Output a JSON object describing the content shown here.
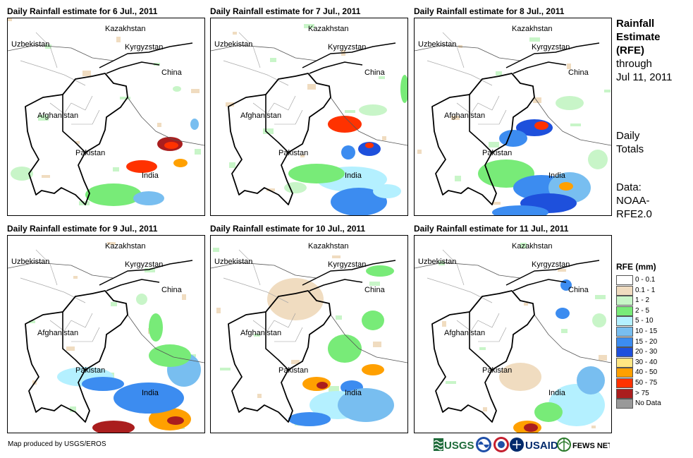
{
  "panels": [
    {
      "title": "Daily Rainfall estimate for 6 Jul., 2011"
    },
    {
      "title": "Daily Rainfall estimate for 7 Jul., 2011"
    },
    {
      "title": "Daily Rainfall estimate for 8 Jul., 2011"
    },
    {
      "title": "Daily Rainfall estimate for 9 Jul., 2011"
    },
    {
      "title": "Daily Rainfall estimate for 10 Jul., 2011"
    },
    {
      "title": "Daily Rainfall estimate for 11 Jul., 2011"
    }
  ],
  "map_labels": {
    "kazakhstan": "Kazakhstan",
    "uzbekistan": "Uzbekistan",
    "kyrgyzstan": "Kyrgyzstan",
    "china": "China",
    "afghanistan": "Afghanistan",
    "pakistan": "Pakistan",
    "india": "India"
  },
  "sidebar": {
    "title_lines": [
      "Rainfall",
      "Estimate",
      "(RFE)"
    ],
    "through": "through",
    "date": "Jul 11, 2011",
    "daily": "Daily",
    "totals": "Totals",
    "data_label": "Data:",
    "source1": "NOAA-",
    "source2": "RFE2.0"
  },
  "legend": {
    "title": "RFE (mm)",
    "items": [
      {
        "label": "0 - 0.1",
        "color": "#ffffff"
      },
      {
        "label": "0.1 - 1",
        "color": "#f0dcc0"
      },
      {
        "label": "1 - 2",
        "color": "#c8f5c8"
      },
      {
        "label": "2 - 5",
        "color": "#78eb78"
      },
      {
        "label": "5 - 10",
        "color": "#b4f0ff"
      },
      {
        "label": "10 - 15",
        "color": "#78bef0"
      },
      {
        "label": "15 - 20",
        "color": "#3c8cf0"
      },
      {
        "label": "20 - 30",
        "color": "#1e50dc"
      },
      {
        "label": "30 - 40",
        "color": "#ffe682"
      },
      {
        "label": "40 - 50",
        "color": "#ffa000"
      },
      {
        "label": "50 - 75",
        "color": "#ff3200"
      },
      {
        "label": "> 75",
        "color": "#aa1e1e"
      },
      {
        "label": "No Data",
        "color": "#999999"
      }
    ]
  },
  "credit": "Map produced by USGS/EROS",
  "logos": {
    "usgs": "USGS",
    "usaid": "USAID",
    "fewsnet": "FEWS NET"
  }
}
